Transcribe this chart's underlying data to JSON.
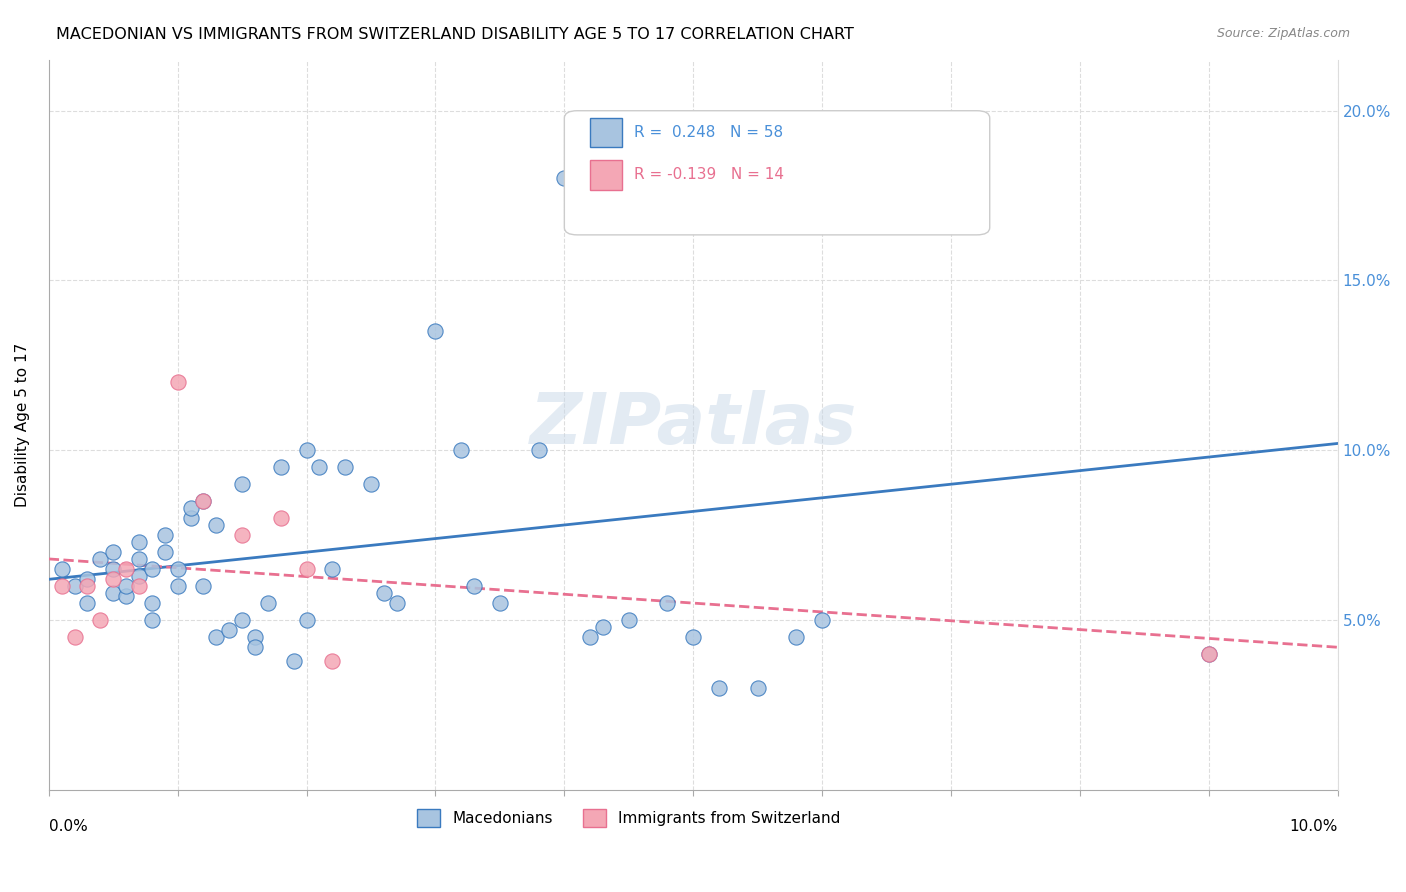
{
  "title": "MACEDONIAN VS IMMIGRANTS FROM SWITZERLAND DISABILITY AGE 5 TO 17 CORRELATION CHART",
  "source": "Source: ZipAtlas.com",
  "ylabel": "Disability Age 5 to 17",
  "y_ticks": [
    0.0,
    0.05,
    0.1,
    0.15,
    0.2
  ],
  "y_tick_labels": [
    "",
    "5.0%",
    "10.0%",
    "15.0%",
    "20.0%"
  ],
  "x_range": [
    0.0,
    0.1
  ],
  "y_range": [
    0.0,
    0.215
  ],
  "macedonians_color": "#a8c4e0",
  "swiss_color": "#f4a7b5",
  "trendline_mac_color": "#3a7abf",
  "trendline_swiss_color": "#e87090",
  "watermark": "ZIPatlas",
  "macedonians_x": [
    0.001,
    0.002,
    0.003,
    0.003,
    0.004,
    0.005,
    0.005,
    0.005,
    0.006,
    0.006,
    0.007,
    0.007,
    0.007,
    0.008,
    0.008,
    0.008,
    0.009,
    0.009,
    0.01,
    0.01,
    0.011,
    0.011,
    0.012,
    0.012,
    0.013,
    0.013,
    0.014,
    0.015,
    0.015,
    0.016,
    0.016,
    0.017,
    0.018,
    0.019,
    0.02,
    0.02,
    0.021,
    0.022,
    0.023,
    0.025,
    0.026,
    0.027,
    0.03,
    0.032,
    0.033,
    0.035,
    0.038,
    0.04,
    0.042,
    0.043,
    0.045,
    0.048,
    0.05,
    0.052,
    0.055,
    0.058,
    0.06,
    0.09
  ],
  "macedonians_y": [
    0.065,
    0.06,
    0.062,
    0.055,
    0.068,
    0.058,
    0.07,
    0.065,
    0.057,
    0.06,
    0.063,
    0.068,
    0.073,
    0.055,
    0.05,
    0.065,
    0.07,
    0.075,
    0.06,
    0.065,
    0.08,
    0.083,
    0.085,
    0.06,
    0.078,
    0.045,
    0.047,
    0.09,
    0.05,
    0.045,
    0.042,
    0.055,
    0.095,
    0.038,
    0.05,
    0.1,
    0.095,
    0.065,
    0.095,
    0.09,
    0.058,
    0.055,
    0.135,
    0.1,
    0.06,
    0.055,
    0.1,
    0.18,
    0.045,
    0.048,
    0.05,
    0.055,
    0.045,
    0.03,
    0.03,
    0.045,
    0.05,
    0.04
  ],
  "swiss_x": [
    0.001,
    0.002,
    0.003,
    0.004,
    0.005,
    0.006,
    0.007,
    0.01,
    0.012,
    0.015,
    0.018,
    0.02,
    0.022,
    0.09
  ],
  "swiss_y": [
    0.06,
    0.045,
    0.06,
    0.05,
    0.062,
    0.065,
    0.06,
    0.12,
    0.085,
    0.075,
    0.08,
    0.065,
    0.038,
    0.04
  ],
  "mac_trend_x": [
    0.0,
    0.1
  ],
  "mac_trend_y": [
    0.062,
    0.102
  ],
  "swiss_trend_x": [
    0.0,
    0.1
  ],
  "swiss_trend_y": [
    0.068,
    0.042
  ]
}
